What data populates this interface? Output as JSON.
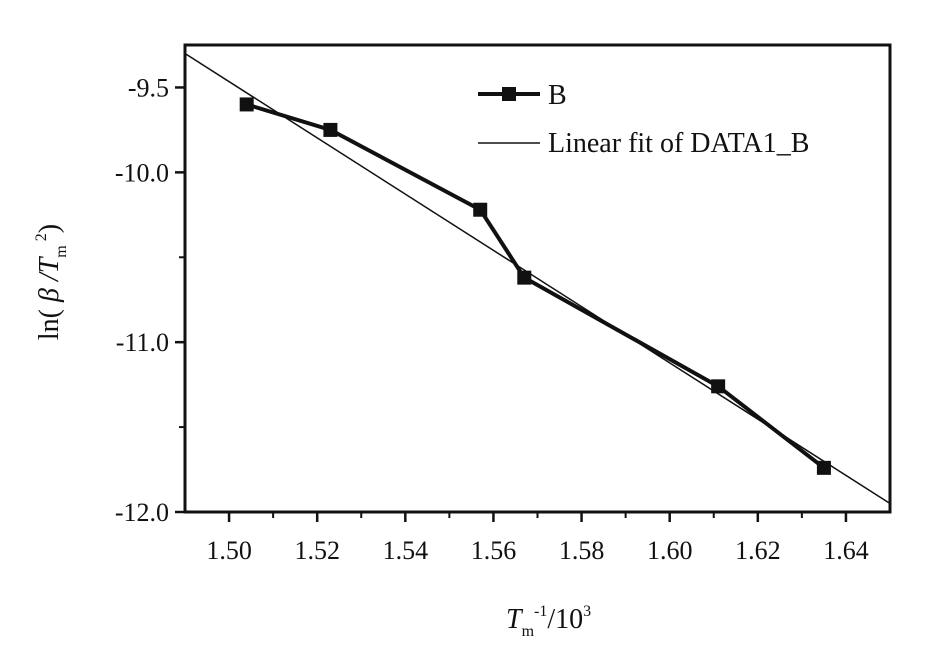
{
  "chart_data": {
    "type": "line",
    "xlabel": "T_m^-1/10^3",
    "ylabel": "ln(β/T_m^2)",
    "xlim": [
      1.49,
      1.65
    ],
    "ylim": [
      -12.0,
      -9.25
    ],
    "xticks": [
      1.5,
      1.52,
      1.54,
      1.56,
      1.58,
      1.6,
      1.62,
      1.64
    ],
    "xtick_labels": [
      "1.50",
      "1.52",
      "1.54",
      "1.56",
      "1.58",
      "1.60",
      "1.62",
      "1.64"
    ],
    "yticks_major": [
      -9.5,
      -10.0,
      -11.0,
      -12.0
    ],
    "ytick_labels": [
      "-9.5",
      "-10.0",
      "-11.0",
      "-12.0"
    ],
    "yticks_minor": [
      -10.5,
      -11.5
    ],
    "grid": false,
    "legend": "top-right",
    "series": [
      {
        "name": "B",
        "style": "line-square-markers",
        "x": [
          1.504,
          1.523,
          1.557,
          1.567,
          1.611,
          1.635
        ],
        "y": [
          -9.6,
          -9.75,
          -10.22,
          -10.62,
          -11.26,
          -11.74
        ]
      },
      {
        "name": "Linear fit of DATA1_B",
        "style": "thin-line",
        "x": [
          1.49,
          1.65
        ],
        "y": [
          -9.3,
          -11.95
        ]
      }
    ]
  }
}
